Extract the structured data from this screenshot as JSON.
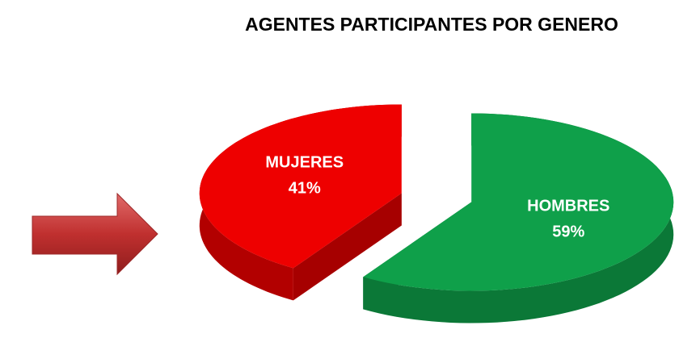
{
  "chart_data": {
    "type": "pie",
    "title": "AGENTES PARTICIPANTES POR GENERO",
    "categories": [
      "MUJERES",
      "HOMBRES"
    ],
    "values": [
      41,
      59
    ],
    "value_labels": [
      "41%",
      "59%"
    ],
    "colors": [
      "#ee0000",
      "#0fa04a"
    ]
  }
}
